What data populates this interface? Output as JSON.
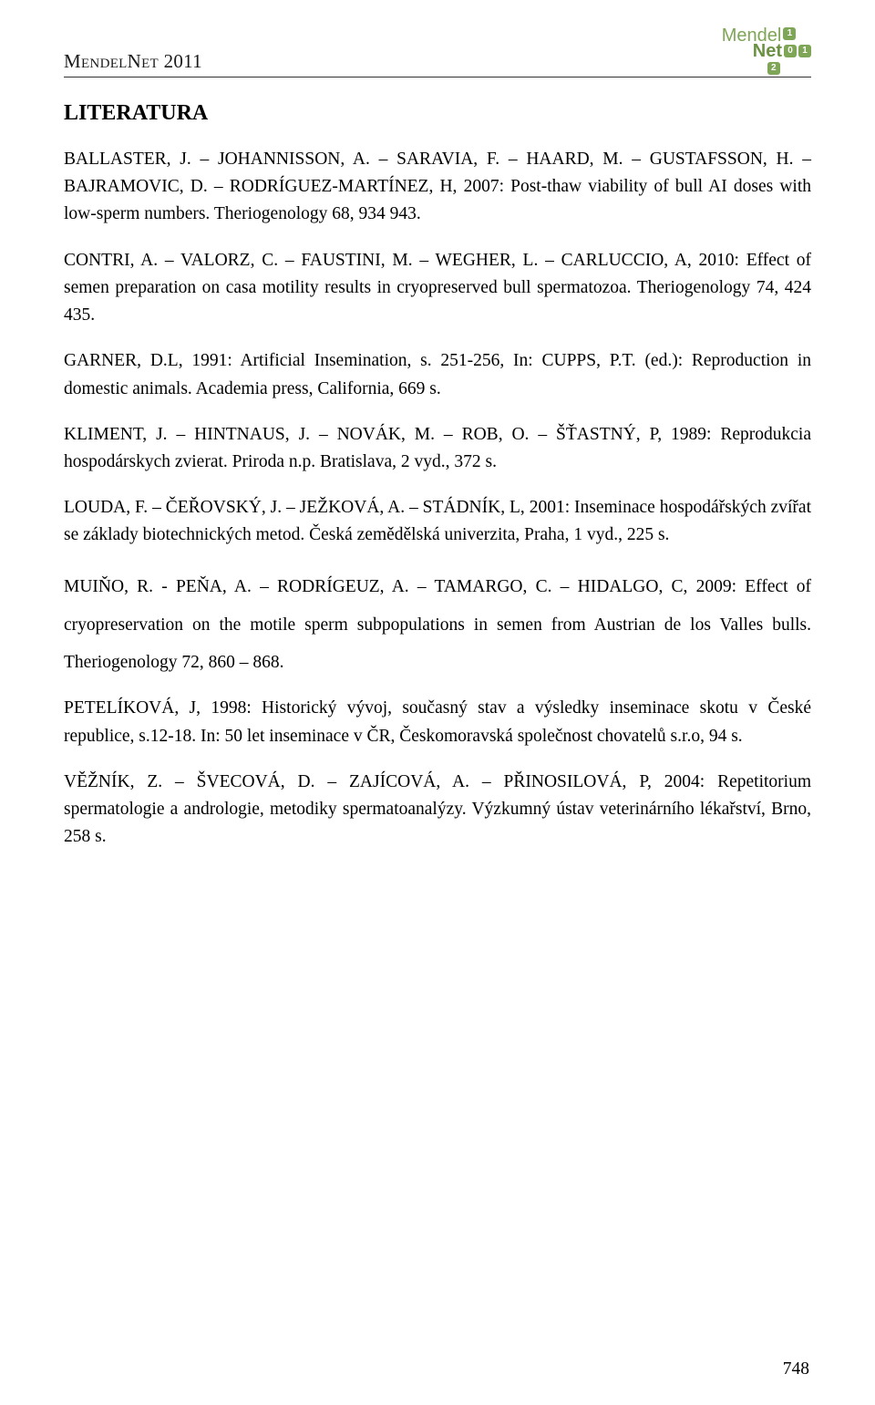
{
  "header": {
    "title": "MendelNet 2011",
    "logo_line1": "Mendel",
    "logo_line2": "Net",
    "logo_badge1": "1",
    "logo_badge2": "0",
    "logo_badge3": "1",
    "logo_badge4": "2"
  },
  "section_title": "LITERATURA",
  "references": [
    "BALLASTER, J. – JOHANNISSON, A. – SARAVIA, F. – HAARD, M. – GUSTAFSSON, H. – BAJRAMOVIC, D. – RODRÍGUEZ-MARTÍNEZ, H, 2007: Post-thaw viability of bull AI doses with low-sperm numbers. Theriogenology 68, 934 943.",
    "CONTRI, A. – VALORZ, C. – FAUSTINI, M. – WEGHER, L. – CARLUCCIO, A, 2010: Effect of semen preparation on casa motility results in cryopreserved bull spermatozoa. Theriogenology 74, 424 435.",
    "GARNER, D.L, 1991: Artificial Insemination, s. 251-256, In: CUPPS, P.T. (ed.): Reproduction in domestic animals. Academia press, California, 669 s.",
    "KLIMENT, J. – HINTNAUS, J. – NOVÁK, M. – ROB, O. – ŠŤASTNÝ, P, 1989: Reprodukcia hospodárskych zvierat. Priroda n.p. Bratislava, 2 vyd., 372 s.",
    "LOUDA, F. – ČEŘOVSKÝ, J. – JEŽKOVÁ, A. – STÁDNÍK, L, 2001: Inseminace hospodářských zvířat se základy biotechnických metod. Česká zemědělská univerzita, Praha, 1 vyd., 225 s.",
    "MUIŇO, R. - PEŇA, A. – RODRÍGEUZ, A. – TAMARGO, C. – HIDALGO, C, 2009: Effect of cryopreservation on the motile sperm subpopulations in semen from Austrian de los Valles bulls. Theriogenology 72, 860 – 868.",
    "PETELÍKOVÁ, J, 1998: Historický vývoj, současný stav a výsledky inseminace skotu v České republice, s.12-18. In: 50 let inseminace v ČR, Českomoravská společnost chovatelů s.r.o, 94 s.",
    "VĚŽNÍK, Z. – ŠVECOVÁ, D. – ZAJÍCOVÁ, A. – PŘINOSILOVÁ, P, 2004: Repetitorium spermatologie a andrologie, metodiky spermatoanalýzy. Výzkumný ústav veterinárního lékařství, Brno, 258 s."
  ],
  "loose_reference_index": 5,
  "page_number": "748"
}
